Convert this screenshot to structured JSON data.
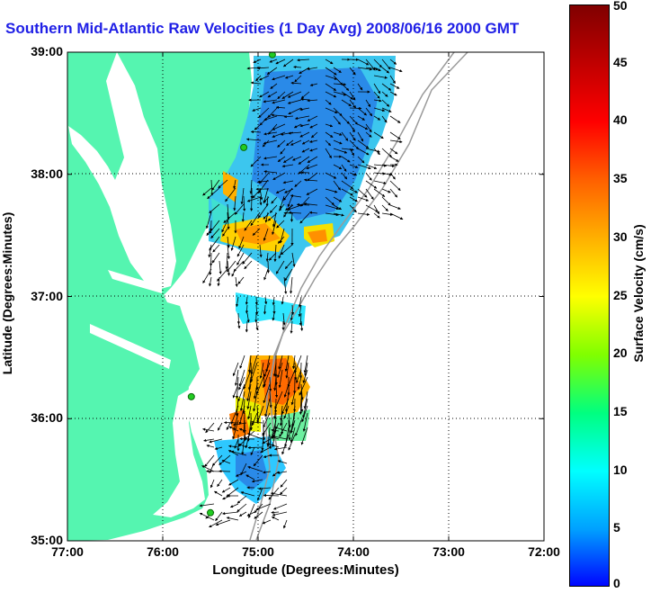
{
  "title": "Southern Mid-Atlantic Raw Velocities (1 Day Avg) 2008/06/16 2000 GMT",
  "axes": {
    "xlabel": "Longitude (Degrees:Minutes)",
    "ylabel": "Latitude (Degrees:Minutes)",
    "x_ticks": [
      "77:00",
      "76:00",
      "75:00",
      "74:00",
      "73:00",
      "72:00"
    ],
    "y_ticks": [
      "39:00",
      "38:00",
      "37:00",
      "36:00",
      "35:00"
    ],
    "lon_range": [
      -77,
      -72
    ],
    "lat_range": [
      35,
      39
    ],
    "grid": "dotted"
  },
  "colorbar": {
    "label": "Surface Velocity (cm/s)",
    "ticks": [
      "50",
      "45",
      "40",
      "35",
      "30",
      "25",
      "20",
      "15",
      "10",
      "5",
      "0"
    ],
    "range": [
      0,
      50
    ],
    "colors": [
      "#0000ff",
      "#00a0ff",
      "#00ffff",
      "#00ff80",
      "#80ff00",
      "#ffff00",
      "#ffb000",
      "#ff6000",
      "#ff0000",
      "#c00000",
      "#800000"
    ]
  },
  "map": {
    "land_color": "#55f5b0",
    "bathymetry_color": "#9a9a9a",
    "station_color": "#22cc22",
    "stations": [
      {
        "lon": -74.85,
        "lat": 38.98
      },
      {
        "lon": -75.15,
        "lat": 38.22
      },
      {
        "lon": -75.7,
        "lat": 36.18
      },
      {
        "lon": -75.5,
        "lat": 35.23
      }
    ]
  }
}
